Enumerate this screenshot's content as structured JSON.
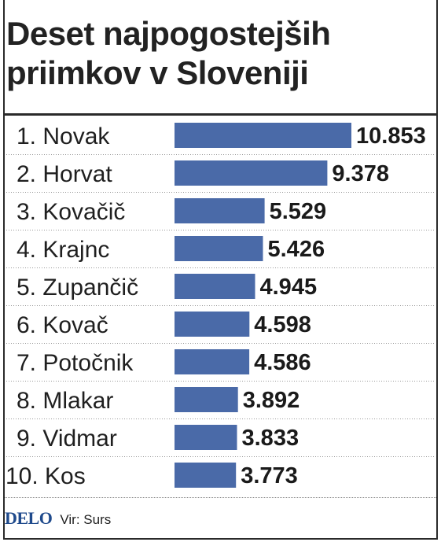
{
  "chart_title": "Deset najpogostejših priimkov v Sloveniji",
  "chart_data": {
    "type": "bar",
    "orientation": "horizontal",
    "title": "Deset najpogostejših priimkov v Sloveniji",
    "categories": [
      "1. Novak",
      "2. Horvat",
      "3. Kovačič",
      "4. Krajnc",
      "5. Zupančič",
      "6. Kovač",
      "7. Potočnik",
      "8. Mlakar",
      "9. Vidmar",
      "10. Kos"
    ],
    "values": [
      10853,
      9378,
      5529,
      5426,
      4945,
      4598,
      4586,
      3892,
      3833,
      3773
    ],
    "value_labels": [
      "10.853",
      "9.378",
      "5.529",
      "5.426",
      "4.945",
      "4.598",
      "4.586",
      "3.892",
      "3.833",
      "3.773"
    ],
    "bar_color": "#4a6aa8",
    "grid": false,
    "legend": "none"
  },
  "footer": {
    "logo": "DELO",
    "source": "Vir: Surs"
  }
}
